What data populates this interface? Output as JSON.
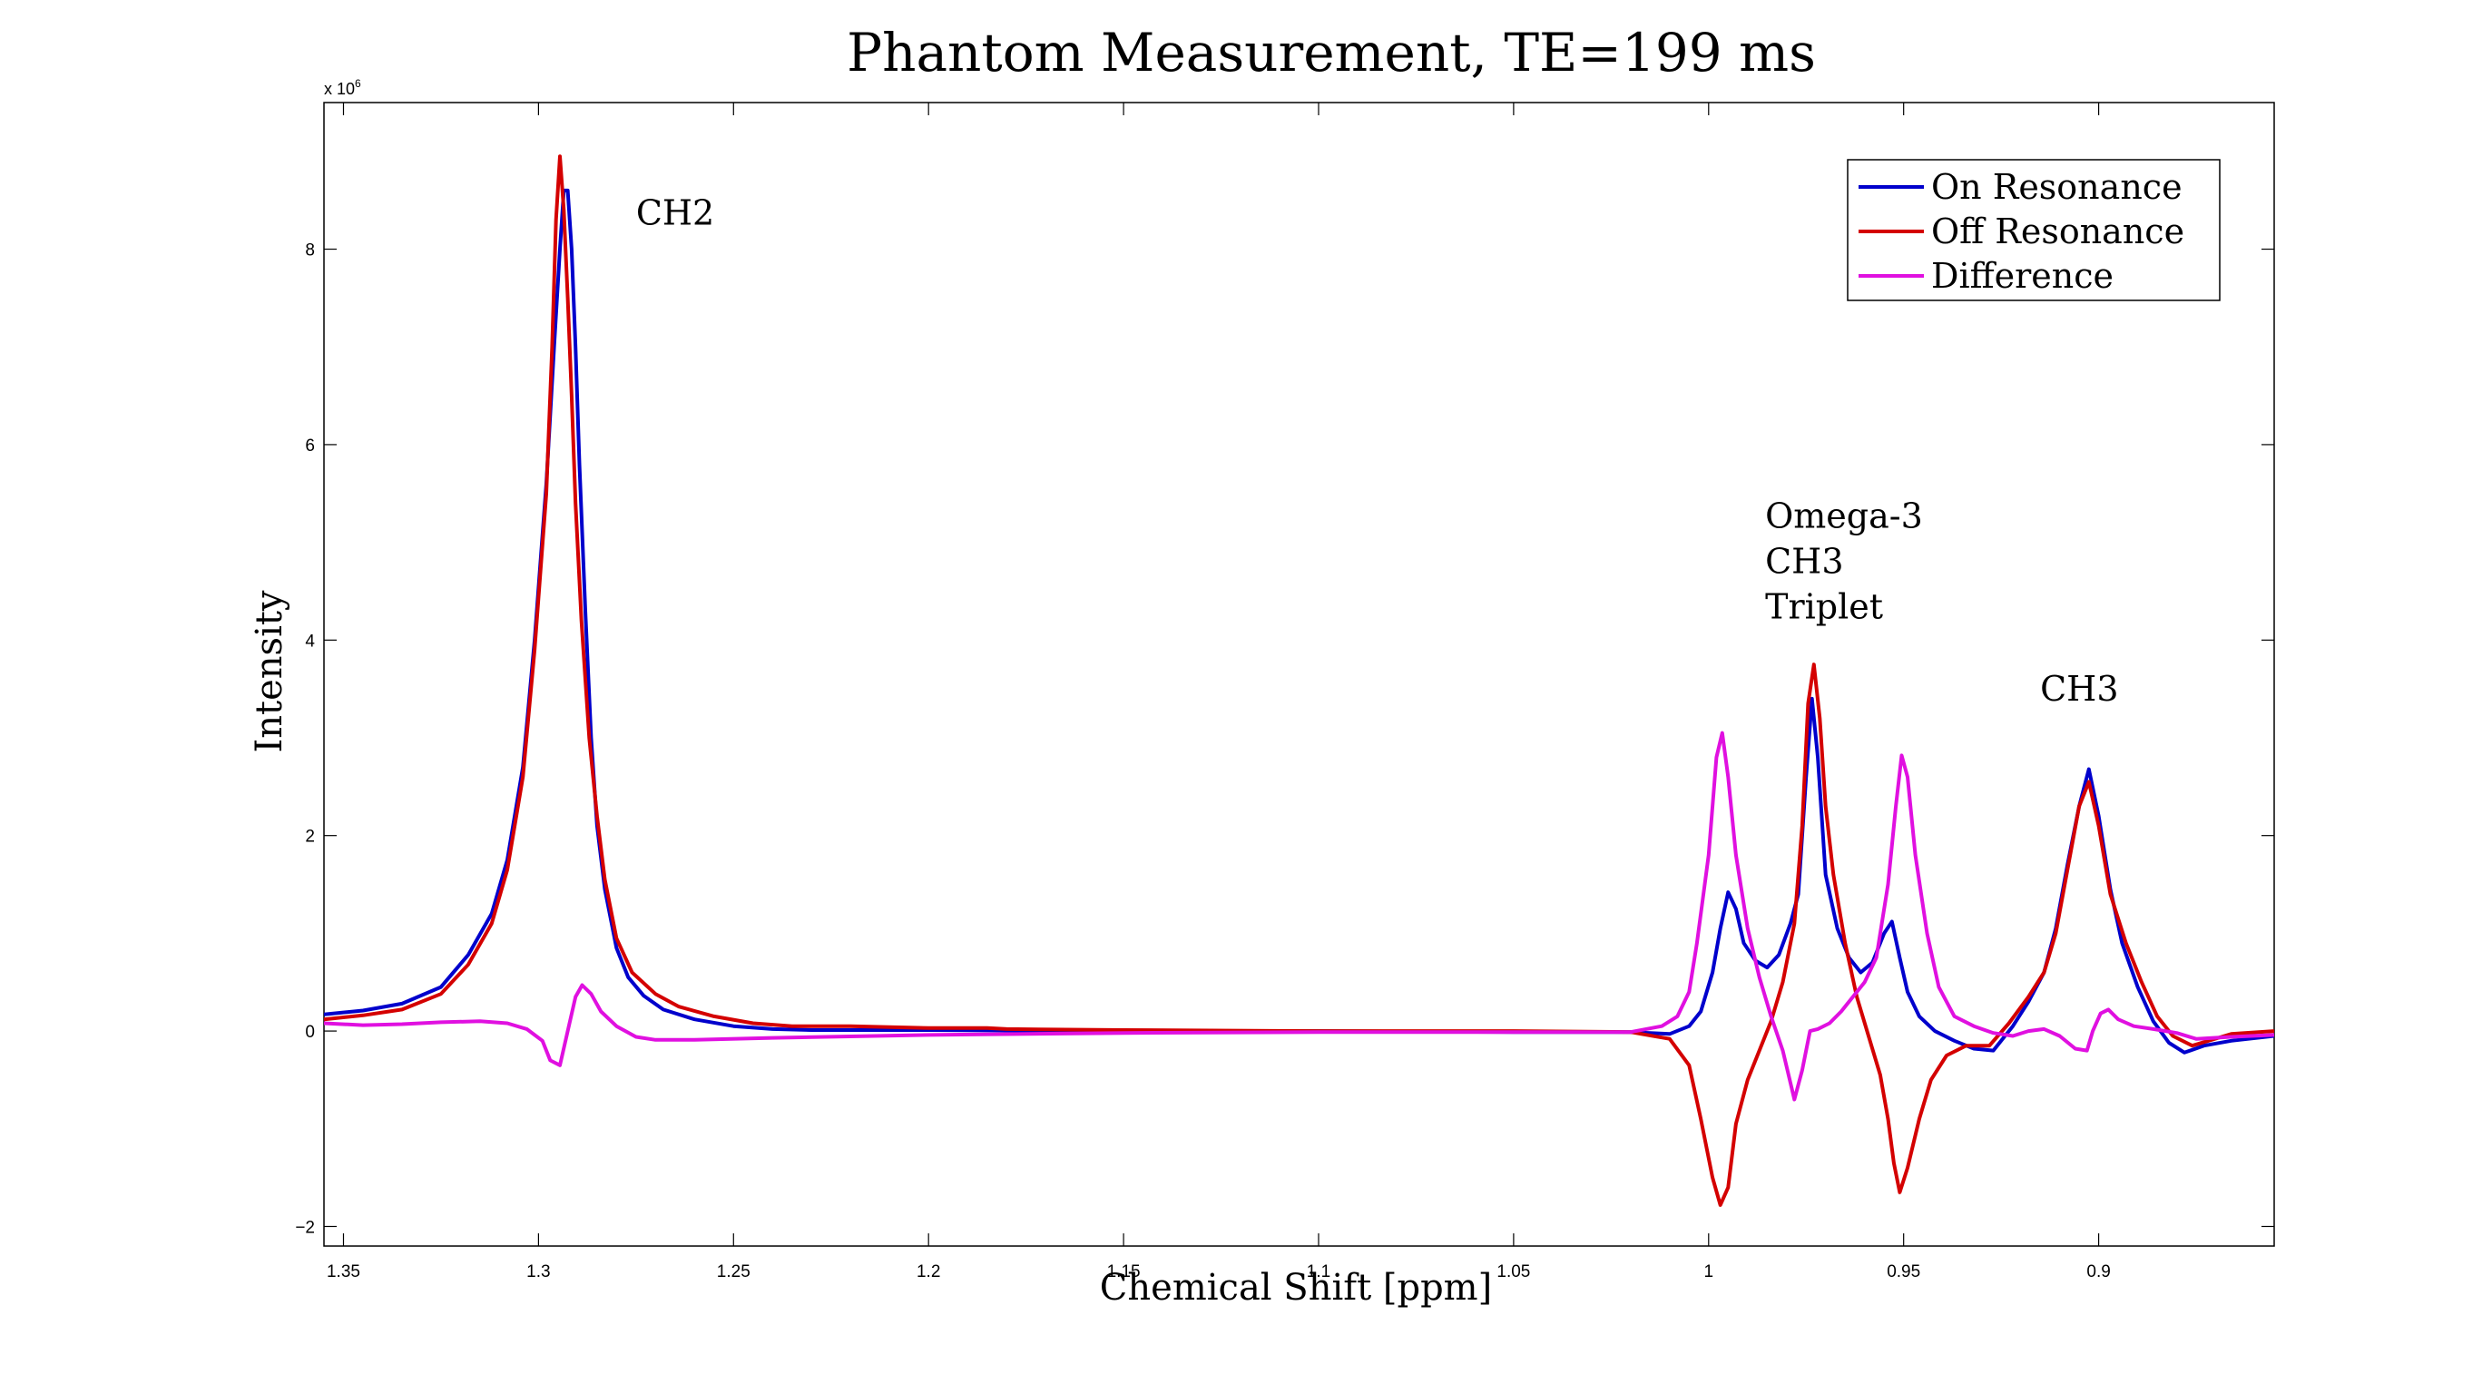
{
  "chart_data": {
    "type": "line",
    "title": "Phantom Measurement, TE=199 ms",
    "xlabel": "Chemical Shift [ppm]",
    "ylabel": "Intensity",
    "y_multiplier": "x 10",
    "y_multiplier_exponent": "6",
    "x_reversed": true,
    "xlim": [
      1.355,
      0.855
    ],
    "ylim": [
      -2.2,
      9.5
    ],
    "x_ticks": [
      1.35,
      1.3,
      1.25,
      1.2,
      1.15,
      1.1,
      1.05,
      1.0,
      0.95,
      0.9
    ],
    "x_tick_labels": [
      "1.35",
      "1.3",
      "1.25",
      "1.2",
      "1.15",
      "1.1",
      "1.05",
      "1",
      "0.95",
      "0.9"
    ],
    "y_ticks": [
      -2,
      0,
      2,
      4,
      6,
      8
    ],
    "y_tick_labels": [
      "−2",
      "0",
      "2",
      "4",
      "6",
      "8"
    ],
    "grid": false,
    "legend_position": "top-right",
    "annotations": [
      {
        "lines": [
          "CH2"
        ],
        "x": 1.275,
        "y": 8.25
      },
      {
        "lines": [
          "Omega-3",
          "CH3",
          "Triplet"
        ],
        "x": 0.9855,
        "y": 5.15
      },
      {
        "lines": [
          "CH3"
        ],
        "x": 0.915,
        "y": 3.38
      }
    ],
    "series": [
      {
        "name": "On Resonance",
        "color": "#0000cc",
        "points": [
          [
            1.355,
            0.17
          ],
          [
            1.345,
            0.21
          ],
          [
            1.335,
            0.28
          ],
          [
            1.325,
            0.45
          ],
          [
            1.318,
            0.78
          ],
          [
            1.312,
            1.2
          ],
          [
            1.308,
            1.75
          ],
          [
            1.304,
            2.7
          ],
          [
            1.301,
            4.0
          ],
          [
            1.298,
            5.6
          ],
          [
            1.296,
            7.0
          ],
          [
            1.2945,
            8.0
          ],
          [
            1.2935,
            8.6
          ],
          [
            1.2925,
            8.6
          ],
          [
            1.2915,
            8.0
          ],
          [
            1.2905,
            7.0
          ],
          [
            1.2895,
            5.8
          ],
          [
            1.288,
            4.3
          ],
          [
            1.2865,
            3.0
          ],
          [
            1.285,
            2.1
          ],
          [
            1.283,
            1.45
          ],
          [
            1.28,
            0.85
          ],
          [
            1.277,
            0.55
          ],
          [
            1.273,
            0.36
          ],
          [
            1.268,
            0.22
          ],
          [
            1.26,
            0.12
          ],
          [
            1.25,
            0.05
          ],
          [
            1.24,
            0.02
          ],
          [
            1.23,
            0.01
          ],
          [
            1.2,
            0.01
          ],
          [
            1.15,
            0.0
          ],
          [
            1.1,
            0.0
          ],
          [
            1.05,
            -0.01
          ],
          [
            1.02,
            -0.01
          ],
          [
            1.01,
            -0.03
          ],
          [
            1.005,
            0.05
          ],
          [
            1.002,
            0.2
          ],
          [
            0.999,
            0.6
          ],
          [
            0.997,
            1.05
          ],
          [
            0.995,
            1.42
          ],
          [
            0.993,
            1.25
          ],
          [
            0.991,
            0.9
          ],
          [
            0.988,
            0.72
          ],
          [
            0.985,
            0.65
          ],
          [
            0.982,
            0.78
          ],
          [
            0.979,
            1.1
          ],
          [
            0.977,
            1.4
          ],
          [
            0.975,
            2.6
          ],
          [
            0.9735,
            3.4
          ],
          [
            0.972,
            2.8
          ],
          [
            0.97,
            1.6
          ],
          [
            0.967,
            1.05
          ],
          [
            0.964,
            0.75
          ],
          [
            0.961,
            0.6
          ],
          [
            0.958,
            0.7
          ],
          [
            0.955,
            1.0
          ],
          [
            0.953,
            1.12
          ],
          [
            0.951,
            0.75
          ],
          [
            0.949,
            0.4
          ],
          [
            0.946,
            0.15
          ],
          [
            0.942,
            0.0
          ],
          [
            0.937,
            -0.1
          ],
          [
            0.932,
            -0.18
          ],
          [
            0.927,
            -0.2
          ],
          [
            0.922,
            0.05
          ],
          [
            0.918,
            0.3
          ],
          [
            0.914,
            0.6
          ],
          [
            0.911,
            1.05
          ],
          [
            0.908,
            1.7
          ],
          [
            0.905,
            2.3
          ],
          [
            0.9025,
            2.68
          ],
          [
            0.9,
            2.2
          ],
          [
            0.897,
            1.45
          ],
          [
            0.894,
            0.9
          ],
          [
            0.89,
            0.45
          ],
          [
            0.886,
            0.1
          ],
          [
            0.882,
            -0.12
          ],
          [
            0.878,
            -0.22
          ],
          [
            0.873,
            -0.15
          ],
          [
            0.866,
            -0.1
          ],
          [
            0.855,
            -0.05
          ]
        ]
      },
      {
        "name": "Off Resonance",
        "color": "#d40000",
        "points": [
          [
            1.355,
            0.12
          ],
          [
            1.345,
            0.16
          ],
          [
            1.335,
            0.22
          ],
          [
            1.325,
            0.38
          ],
          [
            1.318,
            0.68
          ],
          [
            1.312,
            1.1
          ],
          [
            1.308,
            1.65
          ],
          [
            1.304,
            2.6
          ],
          [
            1.301,
            3.9
          ],
          [
            1.298,
            5.5
          ],
          [
            1.2965,
            7.0
          ],
          [
            1.2955,
            8.3
          ],
          [
            1.2945,
            8.95
          ],
          [
            1.2935,
            8.4
          ],
          [
            1.2925,
            7.5
          ],
          [
            1.2915,
            6.5
          ],
          [
            1.2905,
            5.4
          ],
          [
            1.289,
            4.2
          ],
          [
            1.287,
            3.0
          ],
          [
            1.285,
            2.2
          ],
          [
            1.283,
            1.55
          ],
          [
            1.28,
            0.95
          ],
          [
            1.276,
            0.6
          ],
          [
            1.27,
            0.38
          ],
          [
            1.264,
            0.25
          ],
          [
            1.255,
            0.15
          ],
          [
            1.245,
            0.08
          ],
          [
            1.235,
            0.05
          ],
          [
            1.22,
            0.05
          ],
          [
            1.2,
            0.03
          ],
          [
            1.185,
            0.03
          ],
          [
            1.18,
            0.02
          ],
          [
            1.15,
            0.01
          ],
          [
            1.1,
            0.0
          ],
          [
            1.05,
            0.0
          ],
          [
            1.02,
            -0.01
          ],
          [
            1.01,
            -0.08
          ],
          [
            1.005,
            -0.35
          ],
          [
            1.002,
            -0.9
          ],
          [
            0.999,
            -1.5
          ],
          [
            0.997,
            -1.78
          ],
          [
            0.995,
            -1.6
          ],
          [
            0.993,
            -0.95
          ],
          [
            0.99,
            -0.5
          ],
          [
            0.987,
            -0.2
          ],
          [
            0.984,
            0.1
          ],
          [
            0.981,
            0.5
          ],
          [
            0.978,
            1.1
          ],
          [
            0.976,
            2.1
          ],
          [
            0.9745,
            3.35
          ],
          [
            0.973,
            3.75
          ],
          [
            0.9715,
            3.2
          ],
          [
            0.97,
            2.3
          ],
          [
            0.968,
            1.6
          ],
          [
            0.965,
            0.9
          ],
          [
            0.962,
            0.35
          ],
          [
            0.959,
            -0.05
          ],
          [
            0.956,
            -0.45
          ],
          [
            0.954,
            -0.9
          ],
          [
            0.9525,
            -1.35
          ],
          [
            0.951,
            -1.65
          ],
          [
            0.949,
            -1.4
          ],
          [
            0.946,
            -0.9
          ],
          [
            0.943,
            -0.5
          ],
          [
            0.939,
            -0.25
          ],
          [
            0.934,
            -0.15
          ],
          [
            0.928,
            -0.15
          ],
          [
            0.923,
            0.08
          ],
          [
            0.918,
            0.35
          ],
          [
            0.914,
            0.6
          ],
          [
            0.911,
            1.0
          ],
          [
            0.908,
            1.65
          ],
          [
            0.905,
            2.3
          ],
          [
            0.9025,
            2.55
          ],
          [
            0.9,
            2.1
          ],
          [
            0.897,
            1.4
          ],
          [
            0.893,
            0.9
          ],
          [
            0.889,
            0.5
          ],
          [
            0.885,
            0.15
          ],
          [
            0.881,
            -0.05
          ],
          [
            0.876,
            -0.15
          ],
          [
            0.866,
            -0.03
          ],
          [
            0.855,
            0.0
          ]
        ]
      },
      {
        "name": "Difference",
        "color": "#e010e0",
        "points": [
          [
            1.355,
            0.08
          ],
          [
            1.345,
            0.06
          ],
          [
            1.335,
            0.07
          ],
          [
            1.325,
            0.09
          ],
          [
            1.315,
            0.1
          ],
          [
            1.308,
            0.08
          ],
          [
            1.303,
            0.02
          ],
          [
            1.299,
            -0.1
          ],
          [
            1.297,
            -0.3
          ],
          [
            1.2945,
            -0.35
          ],
          [
            1.2925,
            0.0
          ],
          [
            1.2905,
            0.35
          ],
          [
            1.2888,
            0.47
          ],
          [
            1.2865,
            0.38
          ],
          [
            1.284,
            0.2
          ],
          [
            1.28,
            0.05
          ],
          [
            1.275,
            -0.06
          ],
          [
            1.27,
            -0.09
          ],
          [
            1.26,
            -0.09
          ],
          [
            1.24,
            -0.07
          ],
          [
            1.2,
            -0.04
          ],
          [
            1.15,
            -0.02
          ],
          [
            1.1,
            -0.01
          ],
          [
            1.05,
            -0.01
          ],
          [
            1.02,
            -0.01
          ],
          [
            1.012,
            0.05
          ],
          [
            1.008,
            0.15
          ],
          [
            1.005,
            0.4
          ],
          [
            1.003,
            0.9
          ],
          [
            1.0,
            1.8
          ],
          [
            0.998,
            2.8
          ],
          [
            0.9965,
            3.05
          ],
          [
            0.995,
            2.6
          ],
          [
            0.993,
            1.8
          ],
          [
            0.99,
            1.05
          ],
          [
            0.987,
            0.55
          ],
          [
            0.984,
            0.15
          ],
          [
            0.981,
            -0.2
          ],
          [
            0.978,
            -0.7
          ],
          [
            0.976,
            -0.4
          ],
          [
            0.974,
            0.0
          ],
          [
            0.972,
            0.02
          ],
          [
            0.969,
            0.08
          ],
          [
            0.966,
            0.2
          ],
          [
            0.963,
            0.35
          ],
          [
            0.96,
            0.5
          ],
          [
            0.957,
            0.75
          ],
          [
            0.954,
            1.5
          ],
          [
            0.952,
            2.3
          ],
          [
            0.9505,
            2.82
          ],
          [
            0.949,
            2.6
          ],
          [
            0.947,
            1.8
          ],
          [
            0.944,
            1.0
          ],
          [
            0.941,
            0.45
          ],
          [
            0.937,
            0.15
          ],
          [
            0.932,
            0.05
          ],
          [
            0.927,
            -0.02
          ],
          [
            0.922,
            -0.05
          ],
          [
            0.918,
            0.0
          ],
          [
            0.914,
            0.02
          ],
          [
            0.91,
            -0.05
          ],
          [
            0.906,
            -0.18
          ],
          [
            0.903,
            -0.2
          ],
          [
            0.9015,
            0.0
          ],
          [
            0.8995,
            0.18
          ],
          [
            0.8975,
            0.22
          ],
          [
            0.895,
            0.12
          ],
          [
            0.891,
            0.05
          ],
          [
            0.886,
            0.02
          ],
          [
            0.88,
            -0.02
          ],
          [
            0.875,
            -0.08
          ],
          [
            0.866,
            -0.06
          ],
          [
            0.855,
            -0.04
          ]
        ]
      }
    ]
  }
}
